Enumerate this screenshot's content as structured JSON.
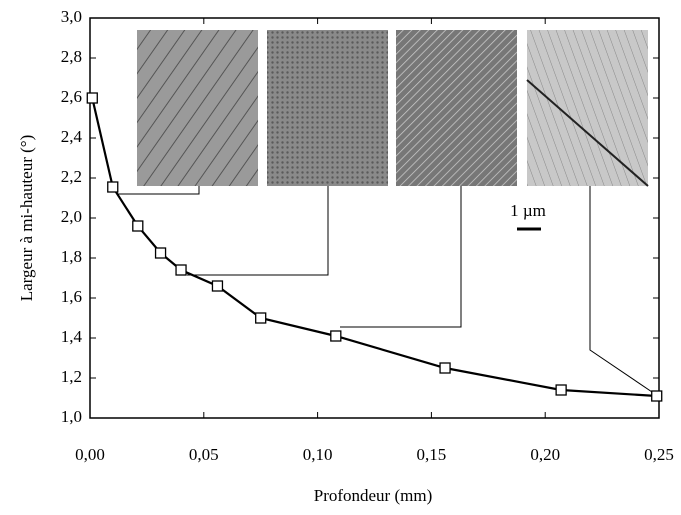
{
  "chart_data": {
    "type": "line",
    "x_label": "Profondeur (mm)",
    "y_label": "Largeur à mi-hauteur (°)",
    "annotations": [
      "1 µm"
    ],
    "x": [
      0.001,
      0.01,
      0.021,
      0.031,
      0.04,
      0.056,
      0.075,
      0.108,
      0.156,
      0.207,
      0.249
    ],
    "series": [
      {
        "color": "#000000",
        "marker": "square",
        "values": [
          2.6,
          2.155,
          1.96,
          1.825,
          1.74,
          1.66,
          1.5,
          1.41,
          1.25,
          1.14,
          1.11
        ]
      }
    ],
    "xlim": [
      0,
      0.25
    ],
    "xticks": [
      {
        "value": 0,
        "label": "0,00"
      },
      {
        "value": 0.05,
        "label": "0,05"
      },
      {
        "value": 0.1,
        "label": "0,10"
      },
      {
        "value": 0.15,
        "label": "0,15"
      },
      {
        "value": 0.2,
        "label": "0,20"
      },
      {
        "value": 0.25,
        "label": "0,25"
      }
    ],
    "ylim": [
      1,
      3
    ],
    "yticks": [
      {
        "value": 1,
        "label": "1,0"
      },
      {
        "value": 1.2,
        "label": "1,2"
      },
      {
        "value": 1.4,
        "label": "1,4"
      },
      {
        "value": 1.6,
        "label": "1,6"
      },
      {
        "value": 1.8,
        "label": "1,8"
      },
      {
        "value": 2,
        "label": "2,0"
      },
      {
        "value": 2.2,
        "label": "2,2"
      },
      {
        "value": 2.4,
        "label": "2,4"
      },
      {
        "value": 2.6,
        "label": "2,6"
      },
      {
        "value": 2.8,
        "label": "2,8"
      },
      {
        "value": 3,
        "label": "3,0"
      }
    ],
    "grid": false
  }
}
